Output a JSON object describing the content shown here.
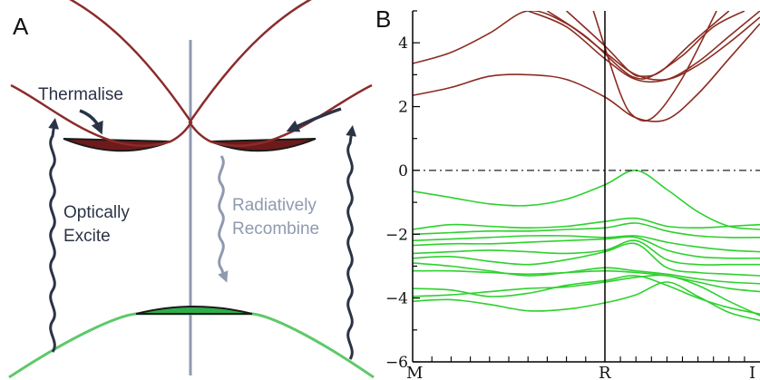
{
  "panel_a": {
    "letter": "A",
    "thermalise": "Thermalise",
    "optically_line1": "Optically",
    "optically_line2": "Excite",
    "radiatively_line1": "Radiatively",
    "radiatively_line2": "Recombine",
    "colors": {
      "conduction_band": "#8b2b2b",
      "valence_band": "#5ec96a",
      "electron_fill": "#6e1a1a",
      "hole_fill": "#2fae49",
      "arrow_dark": "#2b3346",
      "arrow_grey": "#8f9ab0",
      "axis_line": "#8f9ab0"
    }
  },
  "chart_data": {
    "type": "line",
    "panel_letter": "B",
    "ylim": [
      -6,
      5
    ],
    "y_ticks": [
      {
        "value": 4,
        "label": "4"
      },
      {
        "value": 2,
        "label": "2"
      },
      {
        "value": 0,
        "label": "0"
      },
      {
        "value": -2,
        "label": "−2"
      },
      {
        "value": -4,
        "label": "−4"
      },
      {
        "value": -6,
        "label": "−6"
      }
    ],
    "kpoints": [
      "M",
      "R",
      "I"
    ],
    "fermi_level": 0,
    "colors": {
      "conduction": "#8b2c22",
      "valence": "#2ed12e",
      "fermi": "#222222"
    },
    "conduction_bands": [
      {
        "x": [
          0,
          0.1,
          0.2,
          0.3,
          0.4,
          0.5,
          0.6,
          0.7,
          0.8,
          0.9,
          1.0
        ],
        "y": [
          3.35,
          3.7,
          4.3,
          5.0,
          4.6,
          3.7,
          3.0,
          2.85,
          3.3,
          4.0,
          4.8
        ]
      },
      {
        "x": [
          0,
          0.1,
          0.2,
          0.3,
          0.4,
          0.5,
          0.6,
          0.7,
          0.8,
          0.9,
          1.0
        ],
        "y": [
          2.35,
          2.6,
          2.95,
          3.0,
          2.85,
          2.3,
          1.65,
          1.6,
          2.4,
          3.5,
          4.6
        ]
      },
      {
        "x": [
          0.3,
          0.4,
          0.5,
          0.6,
          0.7,
          0.8,
          0.9,
          1.0
        ],
        "y": [
          5.0,
          4.5,
          3.5,
          2.85,
          2.85,
          3.4,
          4.2,
          5.0
        ]
      },
      {
        "x": [
          0.35,
          0.45,
          0.55,
          0.6,
          0.65,
          0.75,
          0.85,
          0.95
        ],
        "y": [
          5.0,
          4.2,
          3.2,
          2.9,
          2.95,
          3.6,
          4.5,
          5.0
        ]
      },
      {
        "x": [
          0.4,
          0.5,
          0.58,
          0.62,
          0.68,
          0.78,
          0.9
        ],
        "y": [
          5.0,
          3.9,
          3.1,
          2.95,
          3.1,
          4.0,
          5.0
        ]
      },
      {
        "x": [
          0.47,
          0.55,
          0.6,
          0.66,
          0.75,
          0.86
        ],
        "y": [
          5.0,
          2.4,
          1.65,
          1.7,
          2.9,
          5.0
        ]
      }
    ],
    "valence_bands": [
      {
        "x": [
          0,
          0.1,
          0.2,
          0.3,
          0.4,
          0.5,
          0.6,
          0.7,
          0.8,
          0.9,
          1.0
        ],
        "y": [
          -0.65,
          -0.85,
          -1.05,
          -1.1,
          -0.9,
          -0.45,
          0.0,
          -0.6,
          -1.3,
          -1.75,
          -1.85
        ]
      },
      {
        "x": [
          0,
          0.1,
          0.2,
          0.3,
          0.4,
          0.5,
          0.6,
          0.7,
          0.8,
          0.9,
          1.0
        ],
        "y": [
          -1.85,
          -1.7,
          -1.75,
          -1.8,
          -1.75,
          -1.6,
          -1.5,
          -1.75,
          -1.8,
          -1.75,
          -1.7
        ]
      },
      {
        "x": [
          0,
          0.1,
          0.2,
          0.3,
          0.4,
          0.5,
          0.6,
          0.7,
          0.8,
          0.9,
          1.0
        ],
        "y": [
          -2.0,
          -1.95,
          -1.9,
          -1.9,
          -1.85,
          -1.8,
          -1.65,
          -1.9,
          -2.05,
          -2.1,
          -2.1
        ]
      },
      {
        "x": [
          0,
          0.1,
          0.2,
          0.3,
          0.4,
          0.5,
          0.6,
          0.7,
          0.8,
          0.9,
          1.0
        ],
        "y": [
          -2.2,
          -2.15,
          -2.1,
          -2.05,
          -2.05,
          -2.1,
          -2.05,
          -2.25,
          -2.4,
          -2.5,
          -2.55
        ]
      },
      {
        "x": [
          0,
          0.1,
          0.2,
          0.3,
          0.4,
          0.5,
          0.6,
          0.7,
          0.8,
          0.9,
          1.0
        ],
        "y": [
          -2.35,
          -2.3,
          -2.3,
          -2.25,
          -2.2,
          -2.15,
          -2.1,
          -2.5,
          -2.7,
          -2.75,
          -2.75
        ]
      },
      {
        "x": [
          0,
          0.1,
          0.2,
          0.3,
          0.4,
          0.5,
          0.6,
          0.7,
          0.8,
          0.9,
          1.0
        ],
        "y": [
          -2.6,
          -2.55,
          -2.5,
          -2.55,
          -2.6,
          -2.5,
          -2.2,
          -2.8,
          -2.95,
          -2.95,
          -2.95
        ]
      },
      {
        "x": [
          0,
          0.1,
          0.2,
          0.3,
          0.4,
          0.5,
          0.6,
          0.7,
          0.8,
          0.9,
          1.0
        ],
        "y": [
          -2.75,
          -2.7,
          -2.85,
          -2.95,
          -2.8,
          -2.55,
          -2.3,
          -3.05,
          -3.2,
          -3.25,
          -3.3
        ]
      },
      {
        "x": [
          0,
          0.1,
          0.2,
          0.3,
          0.4,
          0.5,
          0.6,
          0.7,
          0.8,
          0.9,
          1.0
        ],
        "y": [
          -2.9,
          -3.0,
          -3.15,
          -3.3,
          -3.2,
          -3.05,
          -3.15,
          -3.25,
          -3.4,
          -3.5,
          -3.55
        ]
      },
      {
        "x": [
          0,
          0.1,
          0.2,
          0.3,
          0.4,
          0.5,
          0.6,
          0.7,
          0.8,
          0.9,
          1.0
        ],
        "y": [
          -3.15,
          -3.15,
          -3.2,
          -3.25,
          -3.2,
          -3.15,
          -3.2,
          -3.3,
          -3.5,
          -3.7,
          -3.8
        ]
      },
      {
        "x": [
          0,
          0.1,
          0.2,
          0.3,
          0.4,
          0.5,
          0.6,
          0.7,
          0.8,
          0.9,
          1.0
        ],
        "y": [
          -3.7,
          -3.75,
          -3.95,
          -3.85,
          -3.6,
          -3.45,
          -3.3,
          -3.6,
          -4.0,
          -4.3,
          -4.5
        ]
      },
      {
        "x": [
          0,
          0.1,
          0.2,
          0.3,
          0.4,
          0.5,
          0.6,
          0.7,
          0.8,
          0.9,
          1.0
        ],
        "y": [
          -3.95,
          -3.9,
          -3.8,
          -3.7,
          -3.65,
          -3.5,
          -3.35,
          -3.3,
          -3.6,
          -4.1,
          -4.55
        ]
      },
      {
        "x": [
          0,
          0.1,
          0.2,
          0.3,
          0.4,
          0.5,
          0.6,
          0.7,
          0.8,
          0.9,
          1.0
        ],
        "y": [
          -4.1,
          -4.05,
          -4.2,
          -4.4,
          -4.35,
          -4.15,
          -3.9,
          -3.5,
          -3.95,
          -4.45,
          -4.7
        ]
      }
    ]
  }
}
